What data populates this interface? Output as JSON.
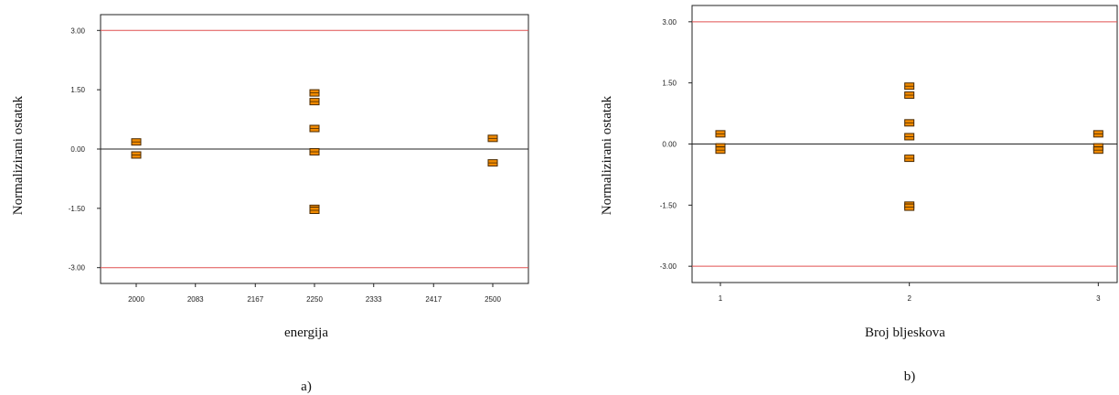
{
  "chart_data": [
    {
      "type": "scatter",
      "panel_label": "a)",
      "xlabel": "energija",
      "ylabel": "Normalizirani ostatak",
      "xlim": [
        1950,
        2550
      ],
      "ylim": [
        -3.4,
        3.4
      ],
      "x_ticks": [
        2000,
        2083,
        2167,
        2250,
        2333,
        2417,
        2500
      ],
      "x_tick_labels": [
        "2000",
        "2083",
        "2167",
        "2250",
        "2333",
        "2417",
        "2500"
      ],
      "y_ticks": [
        3.0,
        1.5,
        0.0,
        -1.5,
        -3.0
      ],
      "y_tick_labels": [
        "3.00",
        "1.50",
        "0.00",
        "-1.50",
        "-3.00"
      ],
      "limit_lines": [
        3.0,
        -3.0
      ],
      "zero_line": 0.0,
      "points": [
        {
          "x": 2000,
          "y": 0.18
        },
        {
          "x": 2000,
          "y": -0.15
        },
        {
          "x": 2250,
          "y": 1.42
        },
        {
          "x": 2250,
          "y": 1.2
        },
        {
          "x": 2250,
          "y": 0.52
        },
        {
          "x": 2250,
          "y": -0.07
        },
        {
          "x": 2250,
          "y": -1.5
        },
        {
          "x": 2250,
          "y": -1.55
        },
        {
          "x": 2500,
          "y": 0.27
        },
        {
          "x": 2500,
          "y": -0.35
        }
      ]
    },
    {
      "type": "scatter",
      "panel_label": "b)",
      "xlabel": "Broj bljeskova",
      "ylabel": "Normalizirani ostatak",
      "xlim": [
        0.85,
        3.1
      ],
      "ylim": [
        -3.4,
        3.4
      ],
      "x_ticks": [
        1,
        2,
        3
      ],
      "x_tick_labels": [
        "1",
        "2",
        "3"
      ],
      "y_ticks": [
        3.0,
        1.5,
        0.0,
        -1.5,
        -3.0
      ],
      "y_tick_labels": [
        "3.00",
        "1.50",
        "0.00",
        "-1.50",
        "-3.00"
      ],
      "limit_lines": [
        3.0,
        -3.0
      ],
      "zero_line": 0.0,
      "points": [
        {
          "x": 1,
          "y": 0.25
        },
        {
          "x": 1,
          "y": -0.07
        },
        {
          "x": 1,
          "y": -0.15
        },
        {
          "x": 2,
          "y": 1.42
        },
        {
          "x": 2,
          "y": 1.2
        },
        {
          "x": 2,
          "y": 0.52
        },
        {
          "x": 2,
          "y": 0.18
        },
        {
          "x": 2,
          "y": -0.35
        },
        {
          "x": 2,
          "y": -1.5
        },
        {
          "x": 2,
          "y": -1.55
        },
        {
          "x": 3,
          "y": 0.25
        },
        {
          "x": 3,
          "y": -0.07
        },
        {
          "x": 3,
          "y": -0.15
        }
      ]
    }
  ],
  "colors": {
    "marker_fill": "#f08a00",
    "marker_stroke": "#4a2a00",
    "limit_line": "#e05050",
    "zero_line": "#222222",
    "frame": "#222222"
  }
}
